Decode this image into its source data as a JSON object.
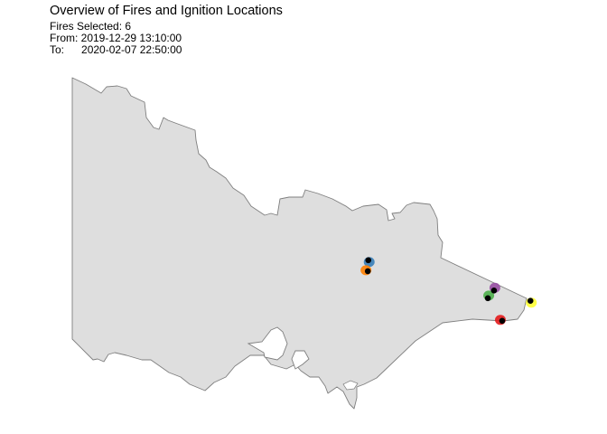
{
  "title": "Overview of Fires and Ignition Locations",
  "subtitle": {
    "fires_selected": "Fires Selected: 6",
    "from": "From: 2019-12-29 13:10:00",
    "to_label": "To:",
    "to_value": "2020-02-07 22:50:00"
  },
  "map": {
    "region": "Victoria",
    "land_fill": "#dedede",
    "border_color": "#7f7f7f",
    "ignition_color": "#000000",
    "fires": [
      {
        "color": "#377eb8",
        "lon": 146.77,
        "lat": -36.83
      },
      {
        "color": "#ff7f00",
        "lon": 146.76,
        "lat": -37.0
      },
      {
        "color": "#984ea3",
        "lon": 149.22,
        "lat": -37.3
      },
      {
        "color": "#4daf4a",
        "lon": 149.1,
        "lat": -37.42
      },
      {
        "color": "#ffff33",
        "lon": 149.93,
        "lat": -37.46
      },
      {
        "color": "#e41a1c",
        "lon": 149.38,
        "lat": -37.77
      }
    ]
  }
}
